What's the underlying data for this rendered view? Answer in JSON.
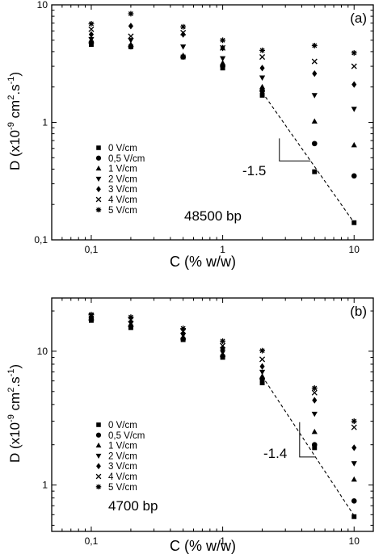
{
  "chart_data": [
    {
      "type": "scatter",
      "panel_label": "(a)",
      "annotation": "48500 bp",
      "slope_label": "-1.5",
      "xlabel": "C (% w/w)",
      "ylabel_main": "D (x10",
      "ylabel_exp1": "-9",
      "ylabel_mid": " cm",
      "ylabel_exp2": "2",
      "ylabel_tail": ".s",
      "ylabel_exp3": "-1",
      "ylabel_close": ")",
      "x_scale": "log",
      "y_scale": "log",
      "xlim": [
        0.05,
        14
      ],
      "ylim": [
        0.1,
        10
      ],
      "x_ticks": [
        {
          "value": 0.1,
          "label": "0,1"
        },
        {
          "value": 1,
          "label": "1"
        },
        {
          "value": 10,
          "label": "10"
        }
      ],
      "y_ticks": [
        {
          "value": 0.1,
          "label": "0,1"
        },
        {
          "value": 1,
          "label": "1"
        },
        {
          "value": 10,
          "label": "10"
        }
      ],
      "grid": false,
      "legend_position": "bottom-left",
      "fit_line": {
        "x": [
          2,
          10
        ],
        "y": [
          1.8,
          0.14
        ]
      },
      "x": [
        0.1,
        0.2,
        0.5,
        1,
        2,
        5,
        10
      ],
      "series": [
        {
          "name": "0 V/cm",
          "marker": "square",
          "values": [
            4.6,
            4.4,
            3.6,
            2.9,
            1.7,
            0.38,
            0.14
          ]
        },
        {
          "name": "0,5 V/cm",
          "marker": "circle",
          "values": [
            4.8,
            4.4,
            3.6,
            3.0,
            1.85,
            0.66,
            0.35
          ]
        },
        {
          "name": "1 V/cm",
          "marker": "triangle-up",
          "values": [
            4.9,
            4.6,
            3.7,
            3.2,
            2.0,
            1.02,
            0.64
          ]
        },
        {
          "name": "2 V/cm",
          "marker": "triangle-down",
          "values": [
            5.1,
            5.0,
            4.4,
            3.5,
            2.4,
            1.7,
            1.3
          ]
        },
        {
          "name": "3 V/cm",
          "marker": "diamond",
          "values": [
            5.6,
            6.6,
            5.6,
            4.3,
            2.9,
            2.6,
            2.1
          ]
        },
        {
          "name": "4 V/cm",
          "marker": "cross",
          "values": [
            6.2,
            5.4,
            5.8,
            4.3,
            3.6,
            3.3,
            3.0
          ]
        },
        {
          "name": "5 V/cm",
          "marker": "asterisk",
          "values": [
            6.9,
            8.4,
            6.5,
            5.0,
            4.1,
            4.5,
            3.9
          ]
        }
      ]
    },
    {
      "type": "scatter",
      "panel_label": "(b)",
      "annotation": "4700 bp",
      "slope_label": "-1.4",
      "xlabel": "C (% w/w)",
      "ylabel_main": "D (x10",
      "ylabel_exp1": "-9",
      "ylabel_mid": " cm",
      "ylabel_exp2": "2",
      "ylabel_tail": ".s",
      "ylabel_exp3": "-1",
      "ylabel_close": ")",
      "x_scale": "log",
      "y_scale": "log",
      "xlim": [
        0.05,
        14
      ],
      "ylim": [
        0.45,
        25
      ],
      "x_ticks": [
        {
          "value": 0.1,
          "label": "0,1"
        },
        {
          "value": 1,
          "label": "1"
        },
        {
          "value": 10,
          "label": "10"
        }
      ],
      "y_ticks": [
        {
          "value": 1,
          "label": "1"
        },
        {
          "value": 10,
          "label": "10"
        }
      ],
      "grid": false,
      "legend_position": "bottom-left",
      "fit_line": {
        "x": [
          2,
          10
        ],
        "y": [
          6.5,
          0.59
        ]
      },
      "x": [
        0.1,
        0.2,
        0.5,
        1,
        2,
        5,
        10
      ],
      "series": [
        {
          "name": "0 V/cm",
          "marker": "square",
          "values": [
            17,
            15,
            12.2,
            9.0,
            5.8,
            1.9,
            0.58
          ]
        },
        {
          "name": "0,5 V/cm",
          "marker": "circle",
          "values": [
            17.3,
            15.4,
            12.3,
            9.2,
            6.2,
            2.0,
            0.76
          ]
        },
        {
          "name": "1 V/cm",
          "marker": "triangle-up",
          "values": [
            17.6,
            15.8,
            12.8,
            9.4,
            6.5,
            2.5,
            1.1
          ]
        },
        {
          "name": "2 V/cm",
          "marker": "triangle-down",
          "values": [
            17.8,
            16.2,
            13.2,
            9.8,
            7.0,
            3.4,
            1.45
          ]
        },
        {
          "name": "3 V/cm",
          "marker": "diamond",
          "values": [
            18.1,
            16.6,
            13.6,
            10.4,
            7.7,
            4.3,
            1.9
          ]
        },
        {
          "name": "4 V/cm",
          "marker": "cross",
          "values": [
            18.4,
            17.2,
            14.1,
            11.0,
            8.7,
            4.9,
            2.7
          ]
        },
        {
          "name": "5 V/cm",
          "marker": "asterisk",
          "values": [
            18.8,
            18.0,
            14.8,
            11.9,
            10.1,
            5.3,
            3.0
          ]
        }
      ]
    }
  ]
}
